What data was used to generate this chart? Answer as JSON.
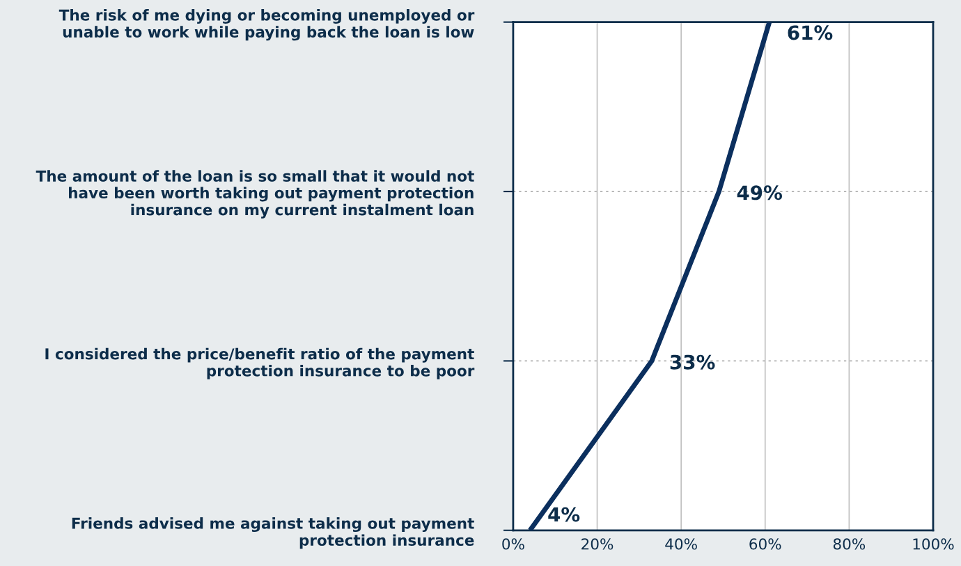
{
  "chart_data": {
    "type": "line",
    "orientation": "horizontal",
    "categories": [
      "The risk of me dying or becoming unemployed or\nunable to work while paying back the loan is low",
      "The amount of the loan is so small that it would not\nhave been worth taking out payment protection\ninsurance on my current instalment loan",
      "I considered the price/benefit ratio of the payment\nprotection insurance to be poor",
      "Friends advised me against taking out payment\nprotection insurance"
    ],
    "values": [
      61,
      49,
      33,
      4
    ],
    "value_labels": [
      "61%",
      "49%",
      "33%",
      "4%"
    ],
    "color": "#0b2f5e",
    "xlim": [
      0,
      100
    ],
    "xticks": [
      {
        "value": 0,
        "label": "0%"
      },
      {
        "value": 20,
        "label": "20%"
      },
      {
        "value": 40,
        "label": "40%"
      },
      {
        "value": 60,
        "label": "60%"
      },
      {
        "value": 80,
        "label": "80%"
      },
      {
        "value": 100,
        "label": "100%"
      }
    ],
    "grid": true,
    "line_style": "solid",
    "marker": "none"
  }
}
